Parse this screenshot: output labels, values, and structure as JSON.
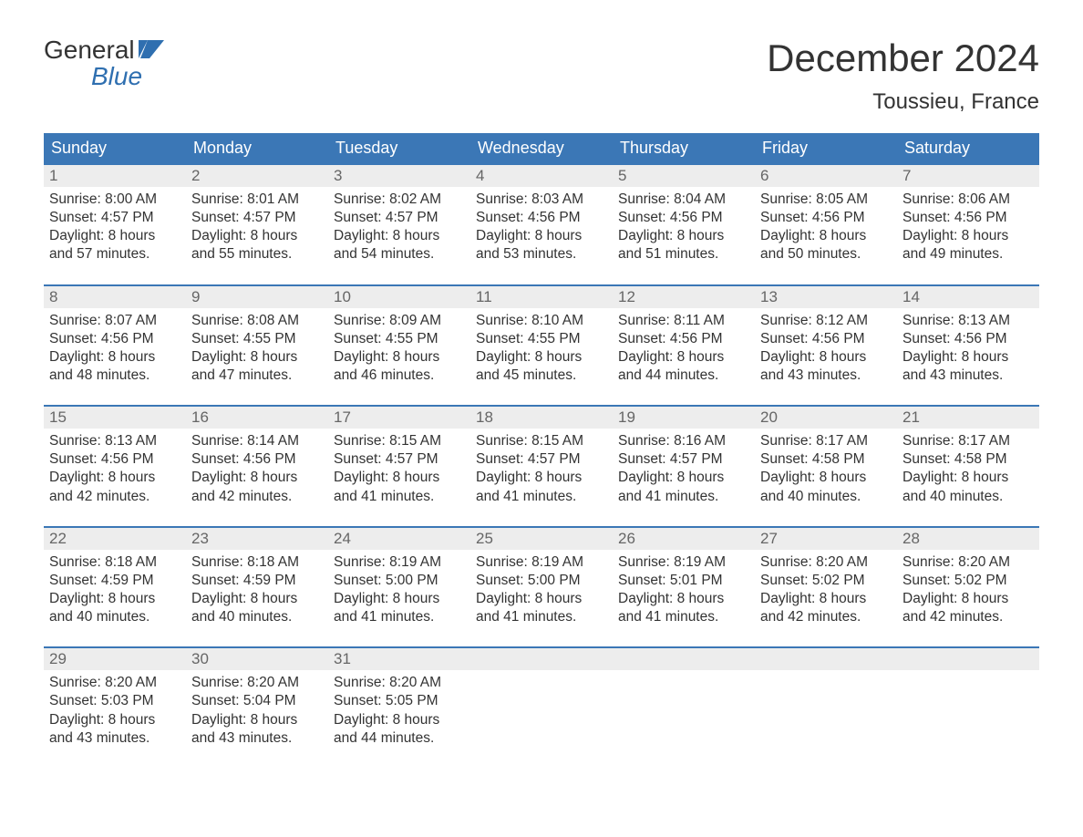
{
  "logo": {
    "line1": "General",
    "line2": "Blue",
    "flag_color": "#2f6fb0"
  },
  "title": "December 2024",
  "location": "Toussieu, France",
  "colors": {
    "header_bg": "#3b77b6",
    "header_text": "#ffffff",
    "daynum_bg": "#ededed",
    "daynum_text": "#666666",
    "body_text": "#333333",
    "week_border": "#3b77b6",
    "background": "#ffffff",
    "logo_accent": "#2f6fb0"
  },
  "fonts": {
    "title_size_pt": 32,
    "location_size_pt": 18,
    "weekday_size_pt": 14,
    "body_size_pt": 12
  },
  "weekdays": [
    "Sunday",
    "Monday",
    "Tuesday",
    "Wednesday",
    "Thursday",
    "Friday",
    "Saturday"
  ],
  "weeks": [
    [
      {
        "n": "1",
        "sunrise": "8:00 AM",
        "sunset": "4:57 PM",
        "daylight": "8 hours and 57 minutes."
      },
      {
        "n": "2",
        "sunrise": "8:01 AM",
        "sunset": "4:57 PM",
        "daylight": "8 hours and 55 minutes."
      },
      {
        "n": "3",
        "sunrise": "8:02 AM",
        "sunset": "4:57 PM",
        "daylight": "8 hours and 54 minutes."
      },
      {
        "n": "4",
        "sunrise": "8:03 AM",
        "sunset": "4:56 PM",
        "daylight": "8 hours and 53 minutes."
      },
      {
        "n": "5",
        "sunrise": "8:04 AM",
        "sunset": "4:56 PM",
        "daylight": "8 hours and 51 minutes."
      },
      {
        "n": "6",
        "sunrise": "8:05 AM",
        "sunset": "4:56 PM",
        "daylight": "8 hours and 50 minutes."
      },
      {
        "n": "7",
        "sunrise": "8:06 AM",
        "sunset": "4:56 PM",
        "daylight": "8 hours and 49 minutes."
      }
    ],
    [
      {
        "n": "8",
        "sunrise": "8:07 AM",
        "sunset": "4:56 PM",
        "daylight": "8 hours and 48 minutes."
      },
      {
        "n": "9",
        "sunrise": "8:08 AM",
        "sunset": "4:55 PM",
        "daylight": "8 hours and 47 minutes."
      },
      {
        "n": "10",
        "sunrise": "8:09 AM",
        "sunset": "4:55 PM",
        "daylight": "8 hours and 46 minutes."
      },
      {
        "n": "11",
        "sunrise": "8:10 AM",
        "sunset": "4:55 PM",
        "daylight": "8 hours and 45 minutes."
      },
      {
        "n": "12",
        "sunrise": "8:11 AM",
        "sunset": "4:56 PM",
        "daylight": "8 hours and 44 minutes."
      },
      {
        "n": "13",
        "sunrise": "8:12 AM",
        "sunset": "4:56 PM",
        "daylight": "8 hours and 43 minutes."
      },
      {
        "n": "14",
        "sunrise": "8:13 AM",
        "sunset": "4:56 PM",
        "daylight": "8 hours and 43 minutes."
      }
    ],
    [
      {
        "n": "15",
        "sunrise": "8:13 AM",
        "sunset": "4:56 PM",
        "daylight": "8 hours and 42 minutes."
      },
      {
        "n": "16",
        "sunrise": "8:14 AM",
        "sunset": "4:56 PM",
        "daylight": "8 hours and 42 minutes."
      },
      {
        "n": "17",
        "sunrise": "8:15 AM",
        "sunset": "4:57 PM",
        "daylight": "8 hours and 41 minutes."
      },
      {
        "n": "18",
        "sunrise": "8:15 AM",
        "sunset": "4:57 PM",
        "daylight": "8 hours and 41 minutes."
      },
      {
        "n": "19",
        "sunrise": "8:16 AM",
        "sunset": "4:57 PM",
        "daylight": "8 hours and 41 minutes."
      },
      {
        "n": "20",
        "sunrise": "8:17 AM",
        "sunset": "4:58 PM",
        "daylight": "8 hours and 40 minutes."
      },
      {
        "n": "21",
        "sunrise": "8:17 AM",
        "sunset": "4:58 PM",
        "daylight": "8 hours and 40 minutes."
      }
    ],
    [
      {
        "n": "22",
        "sunrise": "8:18 AM",
        "sunset": "4:59 PM",
        "daylight": "8 hours and 40 minutes."
      },
      {
        "n": "23",
        "sunrise": "8:18 AM",
        "sunset": "4:59 PM",
        "daylight": "8 hours and 40 minutes."
      },
      {
        "n": "24",
        "sunrise": "8:19 AM",
        "sunset": "5:00 PM",
        "daylight": "8 hours and 41 minutes."
      },
      {
        "n": "25",
        "sunrise": "8:19 AM",
        "sunset": "5:00 PM",
        "daylight": "8 hours and 41 minutes."
      },
      {
        "n": "26",
        "sunrise": "8:19 AM",
        "sunset": "5:01 PM",
        "daylight": "8 hours and 41 minutes."
      },
      {
        "n": "27",
        "sunrise": "8:20 AM",
        "sunset": "5:02 PM",
        "daylight": "8 hours and 42 minutes."
      },
      {
        "n": "28",
        "sunrise": "8:20 AM",
        "sunset": "5:02 PM",
        "daylight": "8 hours and 42 minutes."
      }
    ],
    [
      {
        "n": "29",
        "sunrise": "8:20 AM",
        "sunset": "5:03 PM",
        "daylight": "8 hours and 43 minutes."
      },
      {
        "n": "30",
        "sunrise": "8:20 AM",
        "sunset": "5:04 PM",
        "daylight": "8 hours and 43 minutes."
      },
      {
        "n": "31",
        "sunrise": "8:20 AM",
        "sunset": "5:05 PM",
        "daylight": "8 hours and 44 minutes."
      },
      {
        "empty": true
      },
      {
        "empty": true
      },
      {
        "empty": true
      },
      {
        "empty": true
      }
    ]
  ],
  "labels": {
    "sunrise_prefix": "Sunrise: ",
    "sunset_prefix": "Sunset: ",
    "daylight_prefix": "Daylight: "
  }
}
